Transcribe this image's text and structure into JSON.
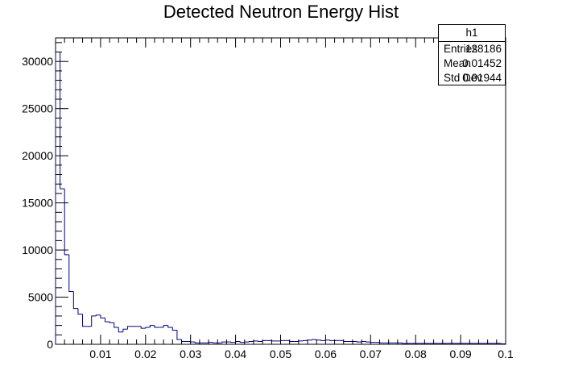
{
  "chart_data": {
    "type": "histogram",
    "title": "Detected Neutron Energy Hist",
    "xlabel": "",
    "ylabel": "",
    "xlim": [
      0,
      0.1
    ],
    "ylim": [
      0,
      32500
    ],
    "grid": false,
    "line_color": "#000080",
    "bin_width": 0.001,
    "bin_start": 0,
    "x_ticks": [
      "0.01",
      "0.02",
      "0.03",
      "0.04",
      "0.05",
      "0.06",
      "0.07",
      "0.08",
      "0.09",
      "0.1"
    ],
    "x_tick_values": [
      0.01,
      0.02,
      0.03,
      0.04,
      0.05,
      0.06,
      0.07,
      0.08,
      0.09,
      0.1
    ],
    "y_ticks": [
      "0",
      "5000",
      "10000",
      "15000",
      "20000",
      "25000",
      "30000"
    ],
    "y_tick_values": [
      0,
      5000,
      10000,
      15000,
      20000,
      25000,
      30000
    ],
    "values": [
      31000,
      16500,
      9500,
      5600,
      3800,
      3200,
      1900,
      1900,
      3000,
      3100,
      2800,
      2400,
      2300,
      1800,
      1300,
      1600,
      1900,
      1900,
      1900,
      1700,
      1800,
      2000,
      1800,
      1800,
      2000,
      1800,
      1500,
      500,
      300,
      300,
      250,
      150,
      150,
      150,
      200,
      150,
      150,
      250,
      250,
      200,
      300,
      200,
      250,
      300,
      350,
      300,
      400,
      400,
      350,
      350,
      400,
      400,
      300,
      300,
      350,
      400,
      450,
      500,
      450,
      400,
      450,
      400,
      400,
      400,
      300,
      300,
      300,
      250,
      300,
      250,
      200,
      200,
      150,
      150,
      150,
      150,
      150,
      100,
      100,
      100,
      100,
      100,
      100,
      100,
      100,
      100,
      100,
      100,
      100,
      100,
      100,
      100,
      100,
      100,
      100,
      100,
      100,
      100,
      100,
      50
    ]
  },
  "stats": {
    "name": "h1",
    "rows": [
      {
        "label": "Entries",
        "value": "128186"
      },
      {
        "label": "Mean",
        "value": "0.01452"
      },
      {
        "label": "Std Dev",
        "value": "0.01944"
      }
    ]
  }
}
